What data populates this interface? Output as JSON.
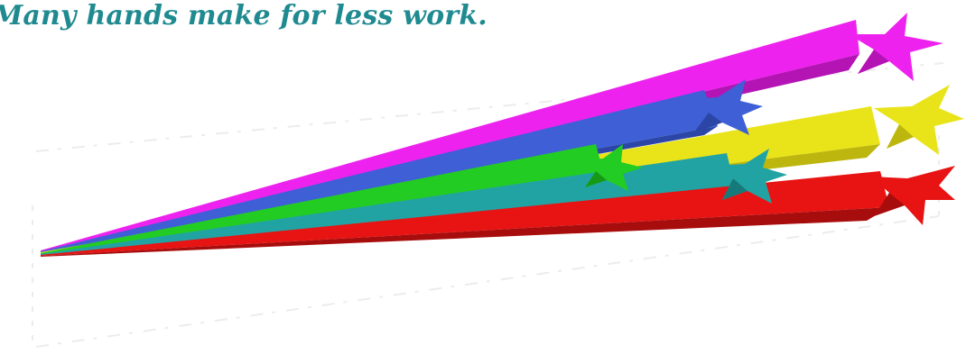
{
  "headline": {
    "text": "Many hands make for less work.",
    "color": "#1f8a8f"
  },
  "shooting_stars": {
    "icon": "shooting-stars-icon",
    "colors": [
      "#ee22ee",
      "#3e5fd6",
      "#e9e419",
      "#22cc22",
      "#22a3a3",
      "#e81313"
    ]
  }
}
